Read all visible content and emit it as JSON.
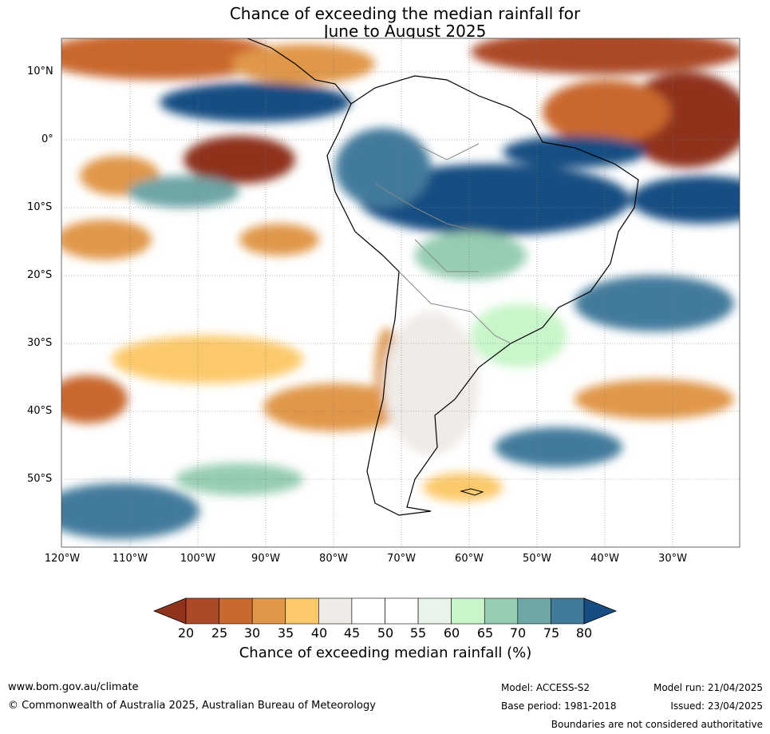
{
  "title": {
    "line1": "Chance of exceeding the median rainfall for",
    "line2": "June to August 2025"
  },
  "map": {
    "lat_labels": [
      "10°N",
      "0°",
      "10°S",
      "20°S",
      "30°S",
      "40°S",
      "50°S"
    ],
    "lon_labels": [
      "120°W",
      "110°W",
      "100°W",
      "90°W",
      "80°W",
      "70°W",
      "60°W",
      "50°W",
      "40°W",
      "30°W"
    ]
  },
  "colorbar": {
    "ticks": [
      "20",
      "25",
      "30",
      "35",
      "40",
      "45",
      "50",
      "55",
      "60",
      "65",
      "70",
      "75",
      "80"
    ],
    "colors": [
      "#8f331c",
      "#ab4a28",
      "#c9682f",
      "#e0974a",
      "#fcc96a",
      "#efebe6",
      "#ffffff",
      "#ffffff",
      "#e8f4ea",
      "#c8f5c9",
      "#96cdb1",
      "#6ea5a5",
      "#427a9b",
      "#174d82"
    ],
    "label": "Chance of exceeding median rainfall (%)"
  },
  "footer": {
    "url": "www.bom.gov.au/climate",
    "copyright": "© Commonwealth of Australia 2025, Australian Bureau of Meteorology",
    "model": "Model: ACCESS-S2",
    "base_period": "Base period: 1981-2018",
    "model_run": "Model run: 21/04/2025",
    "issued": "Issued: 23/04/2025",
    "disclaimer": "Boundaries are not considered authoritative"
  }
}
